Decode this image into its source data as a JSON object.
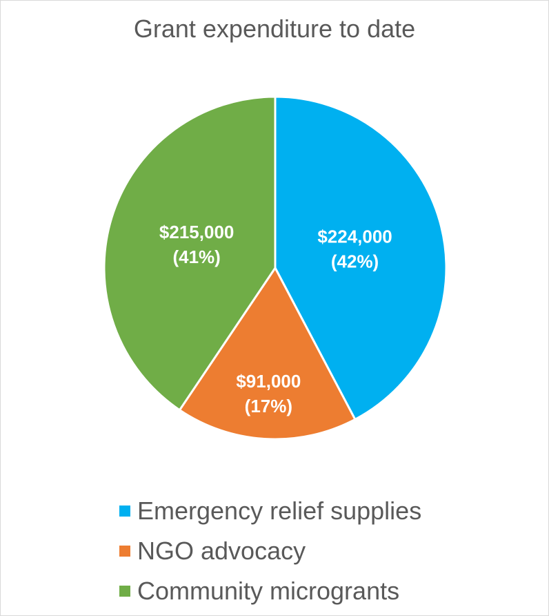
{
  "chart_data": {
    "type": "pie",
    "title": "Grant expenditure to date",
    "categories": [
      "Emergency relief supplies",
      "NGO advocacy",
      "Community microgrants"
    ],
    "values": [
      224000,
      91000,
      215000
    ],
    "value_labels": [
      "$224,000",
      "$91,000",
      "$215,000"
    ],
    "percent_labels": [
      "(42%)",
      "(17%)",
      "(41%)"
    ],
    "colors": [
      "#00B0F0",
      "#ED7D31",
      "#70AD47"
    ],
    "legend_position": "bottom",
    "start_angle": "top, clockwise"
  }
}
